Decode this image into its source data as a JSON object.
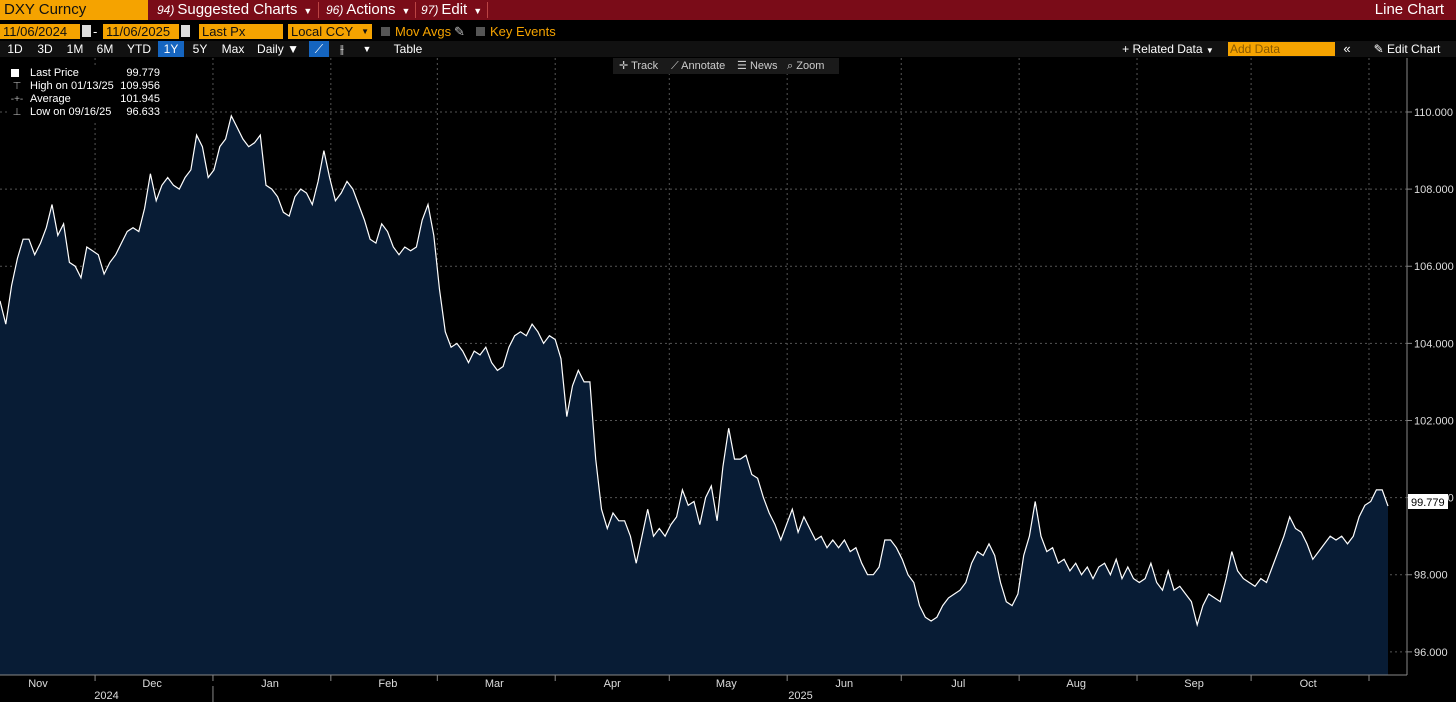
{
  "header": {
    "ticker": "DXY Curncy",
    "menus": [
      {
        "num": "94)",
        "label": "Suggested Charts"
      },
      {
        "num": "96)",
        "label": "Actions"
      },
      {
        "num": "97)",
        "label": "Edit"
      }
    ],
    "chart_type": "Line Chart"
  },
  "controls": {
    "start_date": "11/06/2024",
    "dash": "-",
    "end_date": "11/06/2025",
    "field": "Last Px",
    "currency": "Local CCY",
    "mov_avgs": "Mov Avgs",
    "key_events": "Key Events"
  },
  "toolbar": {
    "ranges": [
      "1D",
      "3D",
      "1M",
      "6M",
      "YTD",
      "1Y",
      "5Y",
      "Max"
    ],
    "active_range": "1Y",
    "frequency": "Daily",
    "table": "Table",
    "related_data": "Related Data",
    "add_data_placeholder": "Add Data",
    "edit_chart": "Edit Chart"
  },
  "chart_tools": [
    "Track",
    "Annotate",
    "News",
    "Zoom"
  ],
  "legend": [
    {
      "label": "Last Price",
      "value": "99.779",
      "icon": "white-square"
    },
    {
      "label": "High on 01/13/25",
      "value": "109.956",
      "icon": "high-marker"
    },
    {
      "label": "Average",
      "value": "101.945",
      "icon": "average-marker"
    },
    {
      "label": "Low on 09/16/25",
      "value": "96.633",
      "icon": "low-marker"
    }
  ],
  "colors": {
    "title_bar": "#7a0c18",
    "accent": "#f5a300",
    "area_fill": "#081c35",
    "line": "#ffffff",
    "active_button": "#1565c0"
  },
  "chart_data": {
    "type": "area",
    "title": "",
    "xlabel": "",
    "ylabel": "",
    "ylim": [
      95.4,
      111.4
    ],
    "yticks": [
      "96.000",
      "98.000",
      "100.000",
      "102.000",
      "104.000",
      "106.000",
      "108.000",
      "110.000"
    ],
    "month_labels": [
      "Nov",
      "Dec",
      "Jan",
      "Feb",
      "Mar",
      "Apr",
      "May",
      "Jun",
      "Jul",
      "Aug",
      "Sep",
      "Oct"
    ],
    "year_labels": [
      "2024",
      "2025"
    ],
    "last_value_label": "99.779",
    "grid": true,
    "legend_position": "top-left",
    "series": [
      {
        "name": "Last Price",
        "x_start": "2024-11-06",
        "x_end": "2025-11-06",
        "values": [
          105.1,
          104.5,
          105.5,
          106.2,
          106.7,
          106.7,
          106.3,
          106.6,
          107.0,
          107.6,
          106.8,
          107.1,
          106.1,
          106.0,
          105.7,
          106.5,
          106.4,
          106.3,
          105.8,
          106.1,
          106.3,
          106.6,
          106.9,
          107.0,
          106.9,
          107.5,
          108.4,
          107.7,
          108.1,
          108.3,
          108.1,
          108.0,
          108.3,
          108.5,
          109.4,
          109.1,
          108.3,
          108.5,
          109.1,
          109.3,
          109.9,
          109.6,
          109.3,
          109.1,
          109.2,
          109.4,
          108.1,
          108.0,
          107.8,
          107.4,
          107.3,
          107.8,
          108.0,
          107.9,
          107.6,
          108.2,
          109.0,
          108.3,
          107.7,
          107.9,
          108.2,
          108.0,
          107.6,
          107.2,
          106.7,
          106.6,
          107.1,
          106.9,
          106.5,
          106.3,
          106.5,
          106.4,
          106.5,
          107.2,
          107.6,
          106.8,
          105.4,
          104.3,
          103.9,
          104.0,
          103.8,
          103.5,
          103.8,
          103.7,
          103.9,
          103.5,
          103.3,
          103.4,
          103.9,
          104.2,
          104.3,
          104.2,
          104.5,
          104.3,
          104.0,
          104.2,
          104.1,
          103.6,
          102.1,
          102.9,
          103.3,
          103.0,
          103.0,
          101.0,
          99.7,
          99.2,
          99.6,
          99.4,
          99.4,
          99.0,
          98.3,
          99.0,
          99.7,
          99.0,
          99.2,
          99.0,
          99.3,
          99.5,
          100.2,
          99.8,
          99.9,
          99.3,
          100.0,
          100.3,
          99.4,
          100.8,
          101.8,
          101.0,
          101.0,
          101.1,
          100.6,
          100.5,
          100.0,
          99.6,
          99.3,
          98.9,
          99.3,
          99.7,
          99.1,
          99.5,
          99.2,
          98.9,
          99.0,
          98.7,
          98.9,
          98.7,
          98.9,
          98.6,
          98.7,
          98.3,
          98.0,
          98.0,
          98.2,
          98.9,
          98.9,
          98.7,
          98.4,
          98.0,
          97.8,
          97.2,
          96.9,
          96.8,
          96.9,
          97.2,
          97.4,
          97.5,
          97.6,
          97.8,
          98.3,
          98.6,
          98.5,
          98.8,
          98.5,
          97.8,
          97.3,
          97.2,
          97.5,
          98.5,
          99.0,
          99.9,
          99.0,
          98.6,
          98.7,
          98.3,
          98.4,
          98.1,
          98.3,
          98.0,
          98.2,
          97.9,
          98.2,
          98.3,
          98.0,
          98.4,
          97.9,
          98.2,
          97.9,
          97.8,
          97.9,
          98.3,
          97.8,
          97.6,
          98.1,
          97.6,
          97.7,
          97.5,
          97.3,
          96.7,
          97.2,
          97.5,
          97.4,
          97.3,
          97.9,
          98.6,
          98.1,
          97.9,
          97.8,
          97.7,
          97.9,
          97.8,
          98.2,
          98.6,
          99.0,
          99.5,
          99.2,
          99.1,
          98.8,
          98.4,
          98.6,
          98.8,
          99.0,
          98.9,
          99.0,
          98.8,
          99.0,
          99.5,
          99.8,
          99.9,
          100.2,
          100.2,
          99.779
        ]
      }
    ]
  }
}
